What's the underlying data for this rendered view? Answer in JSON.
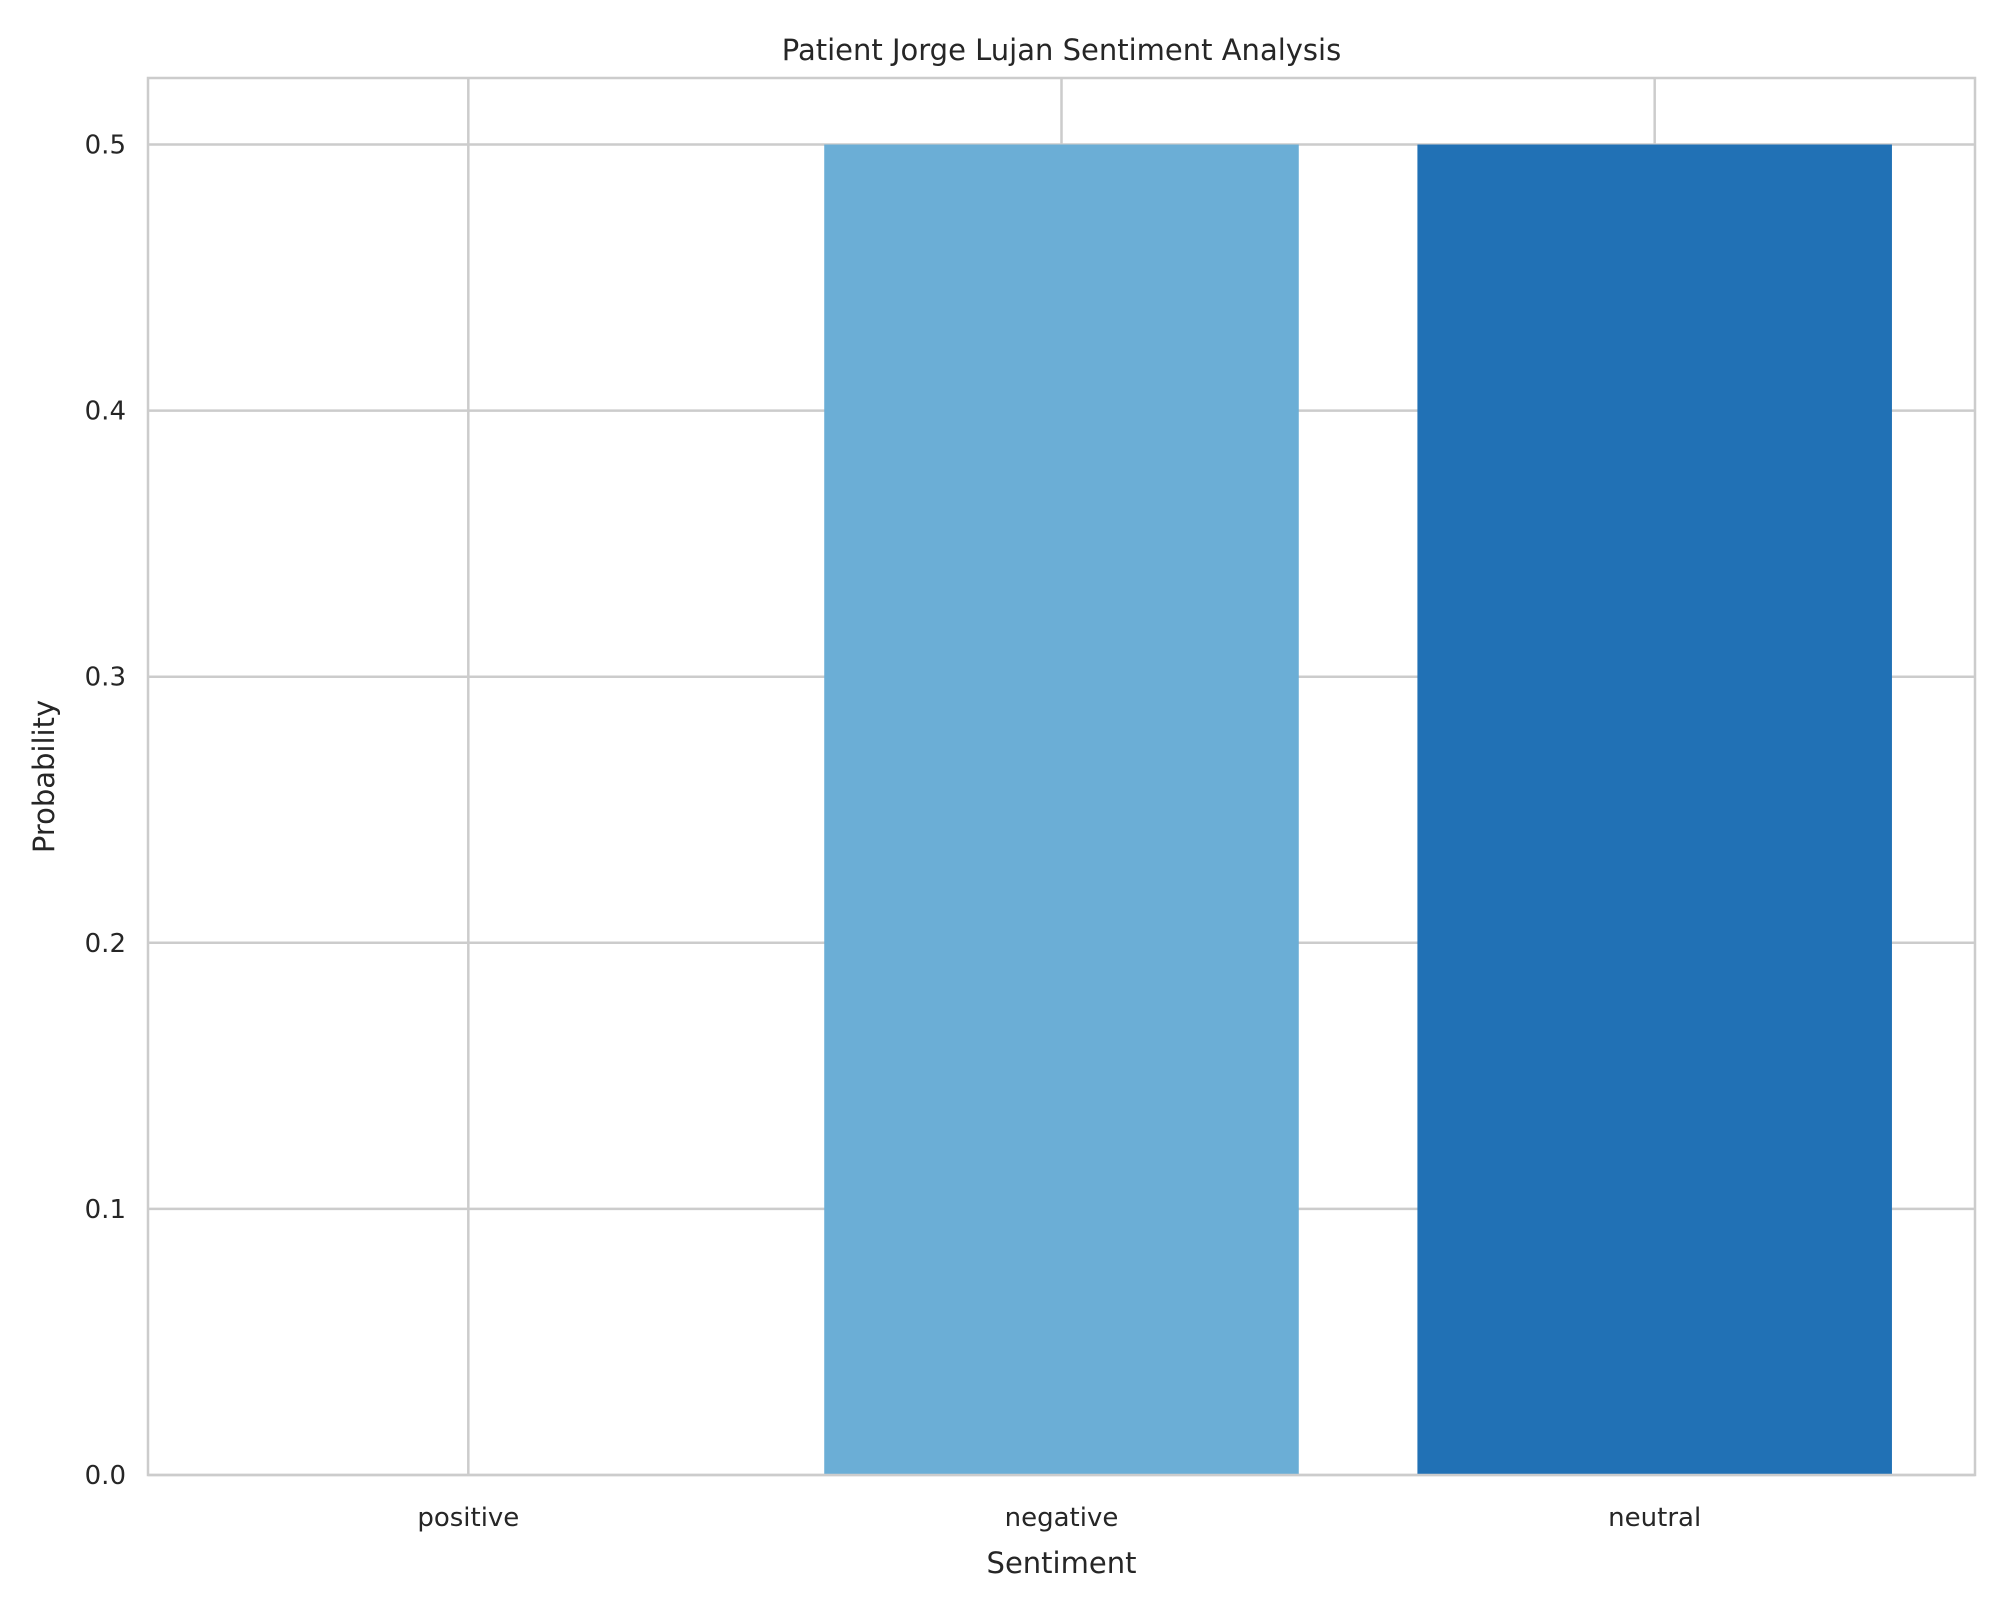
{
  "chart_data": {
    "type": "bar",
    "title": "Patient Jorge Lujan Sentiment Analysis",
    "xlabel": "Sentiment",
    "ylabel": "Probability",
    "categories": [
      "positive",
      "negative",
      "neutral"
    ],
    "values": [
      0.0,
      0.5,
      0.5
    ],
    "colors": [
      "#c6dbef",
      "#6baed6",
      "#2171b5"
    ],
    "ylim": [
      0,
      0.525
    ],
    "yticks": [
      0.0,
      0.1,
      0.2,
      0.3,
      0.4,
      0.5
    ],
    "ytick_labels": [
      "0.0",
      "0.1",
      "0.2",
      "0.3",
      "0.4",
      "0.5"
    ],
    "grid": true,
    "grid_color": "#cccccc",
    "spine_color": "#cccccc",
    "legend": "none"
  }
}
